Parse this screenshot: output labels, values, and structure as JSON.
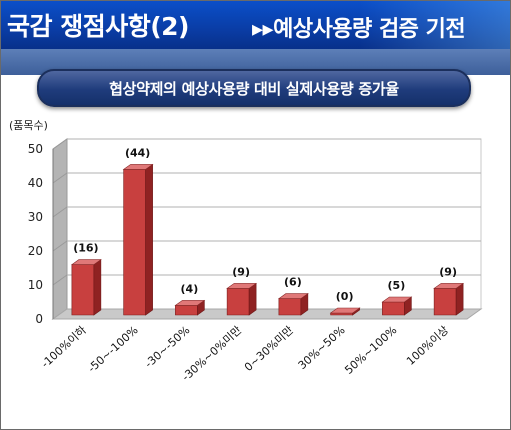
{
  "header": {
    "title": "국감 쟁점사항(2)",
    "subtitle": "▸▸예상사용량 검증 기전"
  },
  "colors": {
    "header_bg": "#0a3ea8",
    "banner_bg": "#1f3c7c",
    "bar_front": "#c8403f",
    "bar_side": "#8f2222",
    "bar_top": "#e07878",
    "back_wall": "#ffffff",
    "floor": "#c9c9c9"
  },
  "chart_data": {
    "type": "bar",
    "title": "협상약제의 예상사용량 대비 실제사용량 증가율",
    "ylabel": "(품목수)",
    "xlabel": "",
    "categories": [
      "-100%이하",
      "-50~-100%",
      "-30~-50%",
      "-30%~0%미만",
      "0~30%미만",
      "30%~50%",
      "50%~100%",
      "100%이상"
    ],
    "values": [
      16,
      44,
      4,
      9,
      6,
      0,
      5,
      9
    ],
    "data_labels": [
      "(16)",
      "(44)",
      "(4)",
      "(9)",
      "(6)",
      "(0)",
      "(5)",
      "(9)"
    ],
    "ylim": [
      0,
      50
    ],
    "yticks": [
      "0",
      "10",
      "20",
      "30",
      "40",
      "50"
    ],
    "grid": true,
    "legend": "none"
  }
}
